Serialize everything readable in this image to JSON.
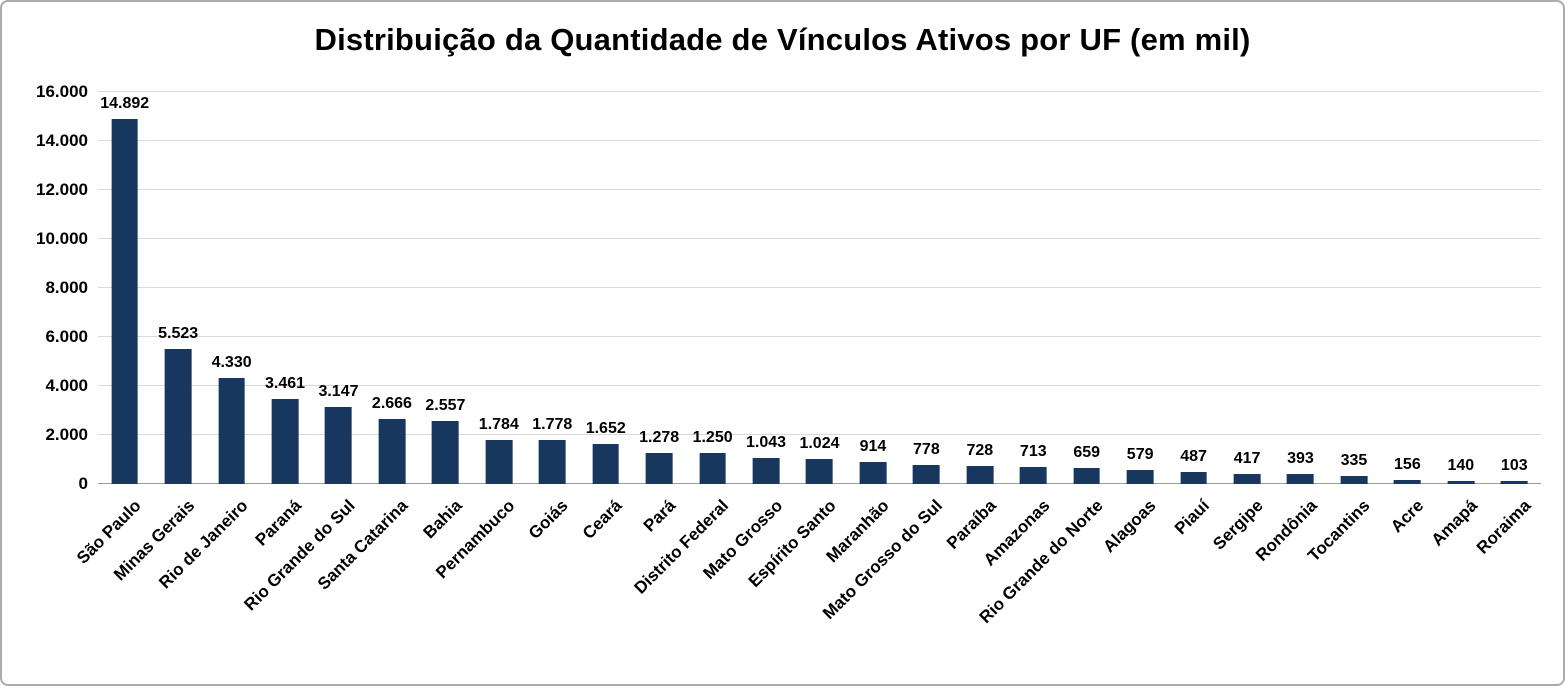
{
  "chart_data": {
    "type": "bar",
    "title": "Distribuição da Quantidade de Vínculos Ativos por UF (em mil)",
    "xlabel": "",
    "ylabel": "",
    "ylim": [
      0,
      16000
    ],
    "grid": true,
    "legend": "none",
    "bar_color": "#17375E",
    "categories": [
      "São Paulo",
      "Minas Gerais",
      "Rio de Janeiro",
      "Paraná",
      "Rio Grande do Sul",
      "Santa Catarina",
      "Bahia",
      "Pernambuco",
      "Goiás",
      "Ceará",
      "Pará",
      "Distrito Federal",
      "Mato Grosso",
      "Espírito Santo",
      "Maranhão",
      "Mato Grosso do Sul",
      "Paraíba",
      "Amazonas",
      "Rio Grande do Norte",
      "Alagoas",
      "Piauí",
      "Sergipe",
      "Rondônia",
      "Tocantins",
      "Acre",
      "Amapá",
      "Roraima"
    ],
    "values": [
      14892,
      5523,
      4330,
      3461,
      3147,
      2666,
      2557,
      1784,
      1778,
      1652,
      1278,
      1250,
      1043,
      1024,
      914,
      778,
      728,
      713,
      659,
      579,
      487,
      417,
      393,
      335,
      156,
      140,
      103
    ],
    "value_labels": [
      "14.892",
      "5.523",
      "4.330",
      "3.461",
      "3.147",
      "2.666",
      "2.557",
      "1.784",
      "1.778",
      "1.652",
      "1.278",
      "1.250",
      "1.043",
      "1.024",
      "914",
      "778",
      "728",
      "713",
      "659",
      "579",
      "487",
      "417",
      "393",
      "335",
      "156",
      "140",
      "103"
    ],
    "y_ticks": {
      "values": [
        0,
        2000,
        4000,
        6000,
        8000,
        10000,
        12000,
        14000,
        16000
      ],
      "labels": [
        "0",
        "2.000",
        "4.000",
        "6.000",
        "8.000",
        "10.000",
        "12.000",
        "14.000",
        "16.000"
      ]
    }
  }
}
